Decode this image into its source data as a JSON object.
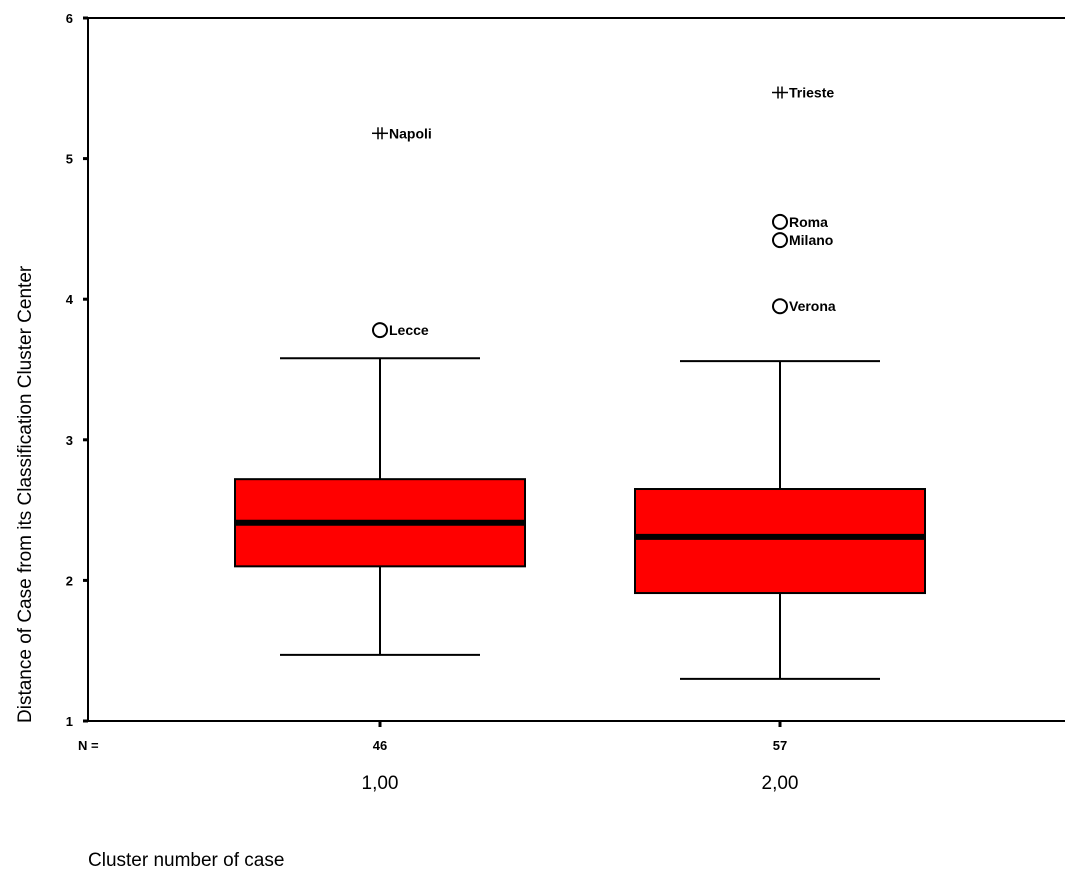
{
  "chart_data": {
    "type": "boxplot",
    "xlabel": "Cluster number of case",
    "ylabel": "Distance of Case from its Classification Cluster Center",
    "ylim": [
      1,
      6
    ],
    "yticks": [
      "1",
      "2",
      "3",
      "4",
      "5",
      "6"
    ],
    "n_label": "N =",
    "colors": {
      "box": "#ff0000",
      "line": "#000000"
    },
    "groups": [
      {
        "category": "1,00",
        "n": "46",
        "min": 1.47,
        "q1": 2.1,
        "median": 2.41,
        "q3": 2.72,
        "max": 3.58,
        "outliers": [
          {
            "value": 3.78,
            "label": "Lecce",
            "symbol": "circle"
          },
          {
            "value": 5.18,
            "label": "Napoli",
            "symbol": "star"
          }
        ]
      },
      {
        "category": "2,00",
        "n": "57",
        "min": 1.3,
        "q1": 1.91,
        "median": 2.31,
        "q3": 2.65,
        "max": 3.56,
        "outliers": [
          {
            "value": 3.95,
            "label": "Verona",
            "symbol": "circle"
          },
          {
            "value": 4.42,
            "label": "Milano",
            "symbol": "circle"
          },
          {
            "value": 4.55,
            "label": "Roma",
            "symbol": "circle"
          },
          {
            "value": 5.47,
            "label": "Trieste",
            "symbol": "star"
          }
        ]
      }
    ]
  }
}
